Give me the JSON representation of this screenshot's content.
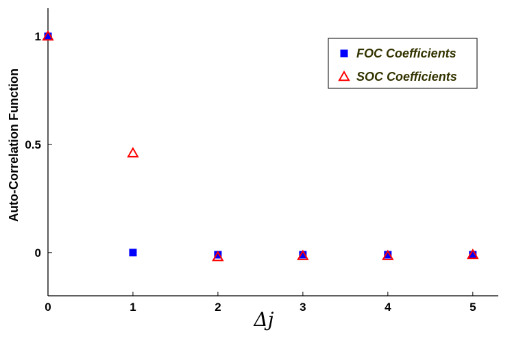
{
  "chart_data": {
    "type": "scatter",
    "title": "",
    "xlabel": "Δj",
    "ylabel": "Auto-Correlation Function",
    "xlim": [
      0,
      5.3
    ],
    "ylim": [
      -0.2,
      1.13
    ],
    "x_ticks": [
      "0",
      "1",
      "2",
      "3",
      "4",
      "5"
    ],
    "y_ticks": [
      "0",
      "0.5",
      "1"
    ],
    "grid": false,
    "legend_position": "top-right",
    "series": [
      {
        "name": "FOC Coefficients",
        "marker": "square",
        "color": "#0000ff",
        "x": [
          0,
          1,
          2,
          3,
          4,
          5
        ],
        "y": [
          1.0,
          0.0,
          -0.01,
          -0.01,
          -0.01,
          -0.01
        ]
      },
      {
        "name": "SOC Coefficients",
        "marker": "triangle",
        "color": "#ff0000",
        "x": [
          0,
          1,
          2,
          3,
          4,
          5
        ],
        "y": [
          1.0,
          0.46,
          -0.02,
          -0.015,
          -0.015,
          -0.01
        ]
      }
    ]
  }
}
